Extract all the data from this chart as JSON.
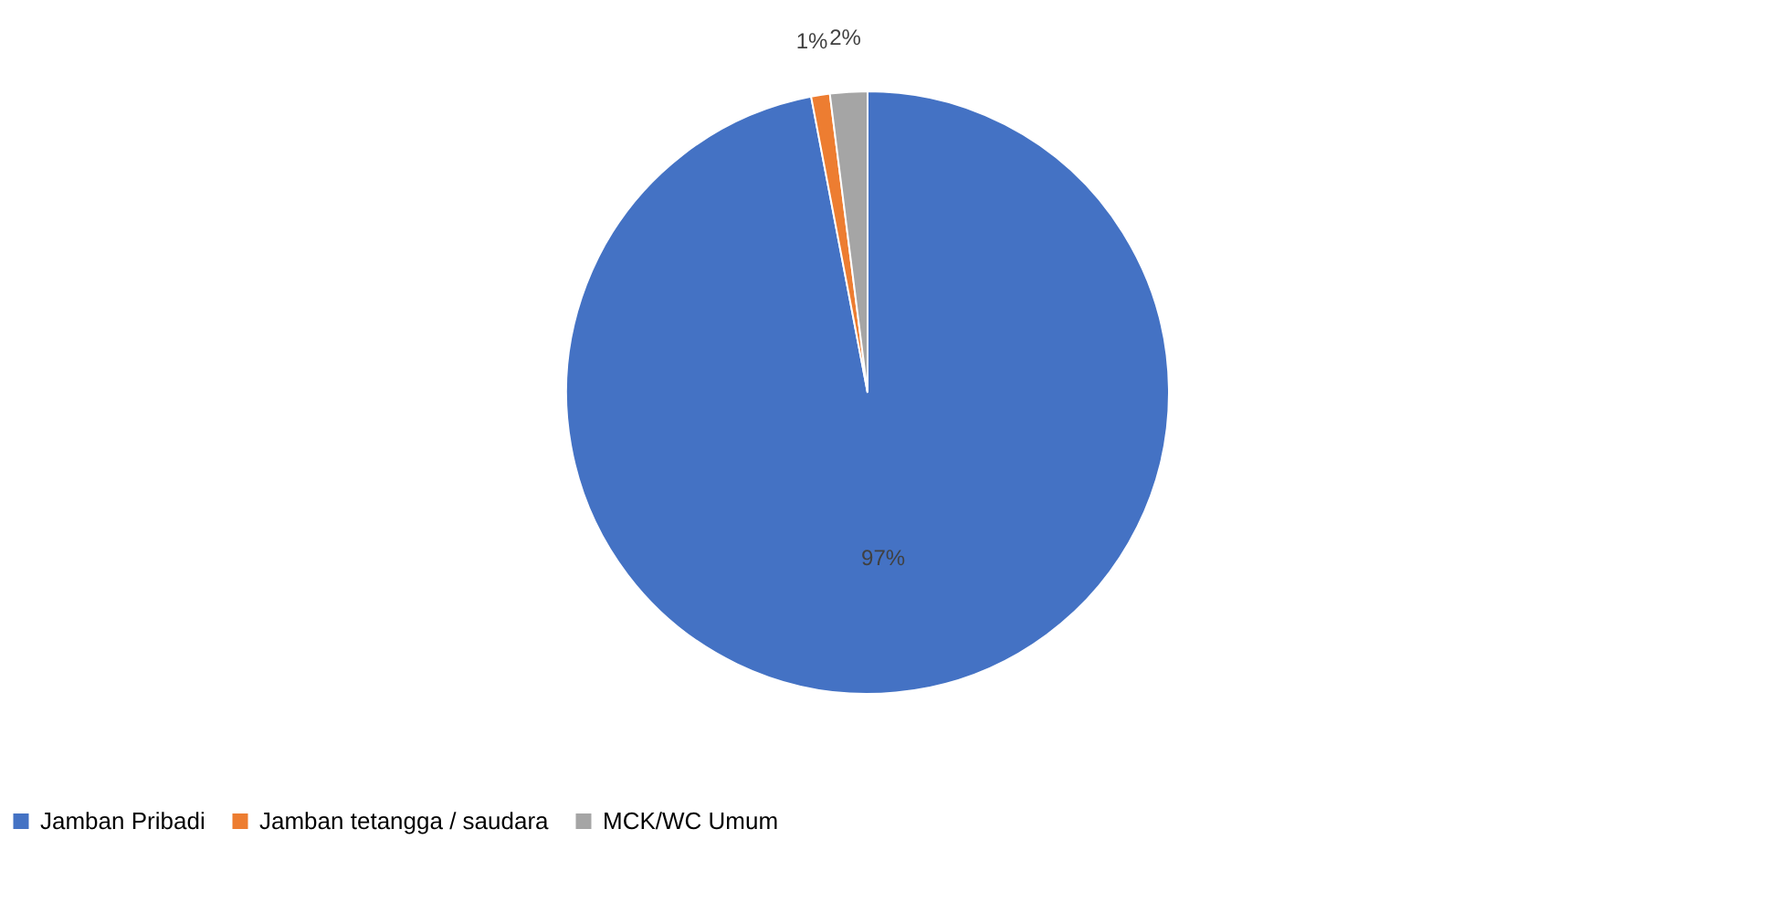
{
  "chart_data": {
    "type": "pie",
    "categories": [
      "Jamban Pribadi",
      "Jamban tetangga / saudara",
      "MCK/WC Umum"
    ],
    "values": [
      97,
      1,
      2
    ],
    "colors": [
      "#4472c4",
      "#ed7d31",
      "#a5a5a5"
    ],
    "value_labels": [
      "97%",
      "1%",
      "2%"
    ],
    "legend": "bottom"
  }
}
